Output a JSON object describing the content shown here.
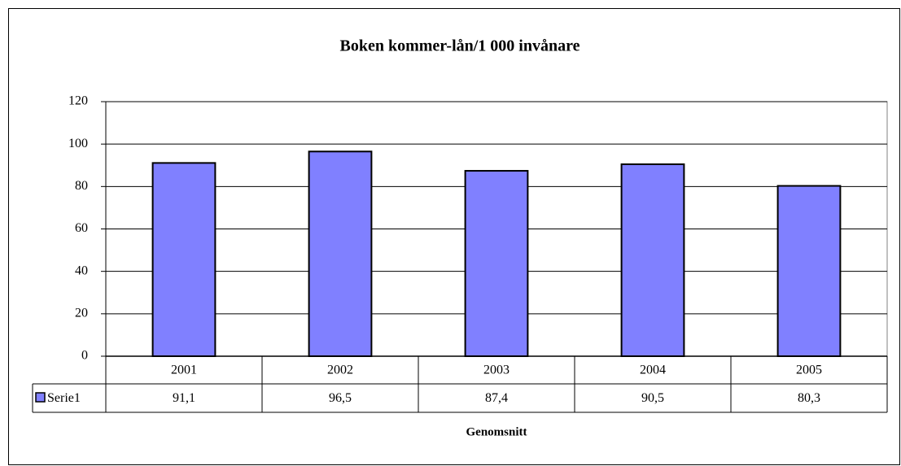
{
  "chart_data": {
    "type": "bar",
    "title": "Boken kommer-lån/1 000 invånare",
    "x_label": "Genomsnitt",
    "categories": [
      "2001",
      "2002",
      "2003",
      "2004",
      "2005"
    ],
    "series": [
      {
        "name": "Serie1",
        "color": "#8080ff",
        "values": [
          91.1,
          96.5,
          87.4,
          90.5,
          80.3
        ],
        "value_labels": [
          "91,1",
          "96,5",
          "87,4",
          "90,5",
          "80,3"
        ]
      }
    ],
    "ylim": [
      0,
      120
    ],
    "yticks": [
      0,
      20,
      40,
      60,
      80,
      100,
      120
    ],
    "grid": true
  }
}
